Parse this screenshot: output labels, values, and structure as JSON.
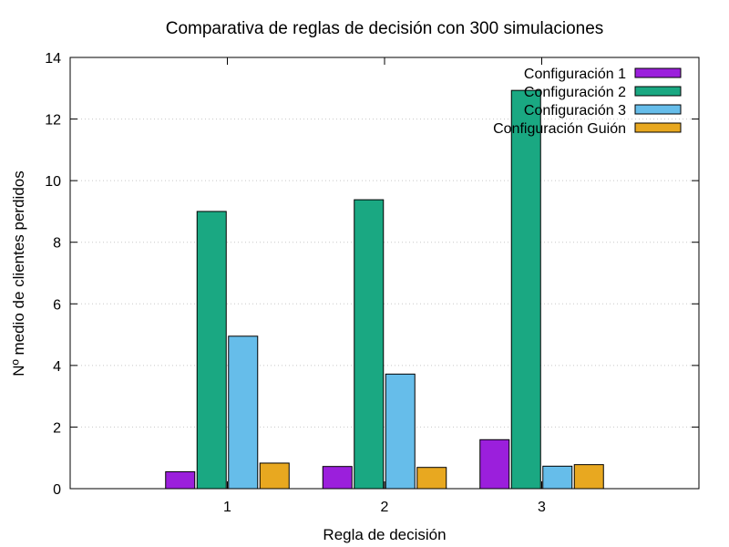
{
  "chart_data": {
    "type": "bar",
    "title": "Comparativa de reglas de decisión con 300 simulaciones",
    "xlabel": "Regla de decisión",
    "ylabel": "Nº medio de clientes perdidos",
    "categories": [
      "1",
      "2",
      "3"
    ],
    "ylim": [
      0,
      14
    ],
    "yticks": [
      "0",
      "2",
      "4",
      "6",
      "8",
      "10",
      "12",
      "14"
    ],
    "grid": true,
    "legend_position": "top-right",
    "series": [
      {
        "name": "Configuración 1",
        "color": "#9b1fdc",
        "values": [
          0.55,
          0.72,
          1.59
        ]
      },
      {
        "name": "Configuración 2",
        "color": "#1aa882",
        "values": [
          9.0,
          9.38,
          12.93
        ]
      },
      {
        "name": "Configuración 3",
        "color": "#66bdea",
        "values": [
          4.95,
          3.72,
          0.73
        ]
      },
      {
        "name": "Configuración Guión",
        "color": "#e8a820",
        "values": [
          0.83,
          0.69,
          0.78
        ]
      }
    ]
  }
}
